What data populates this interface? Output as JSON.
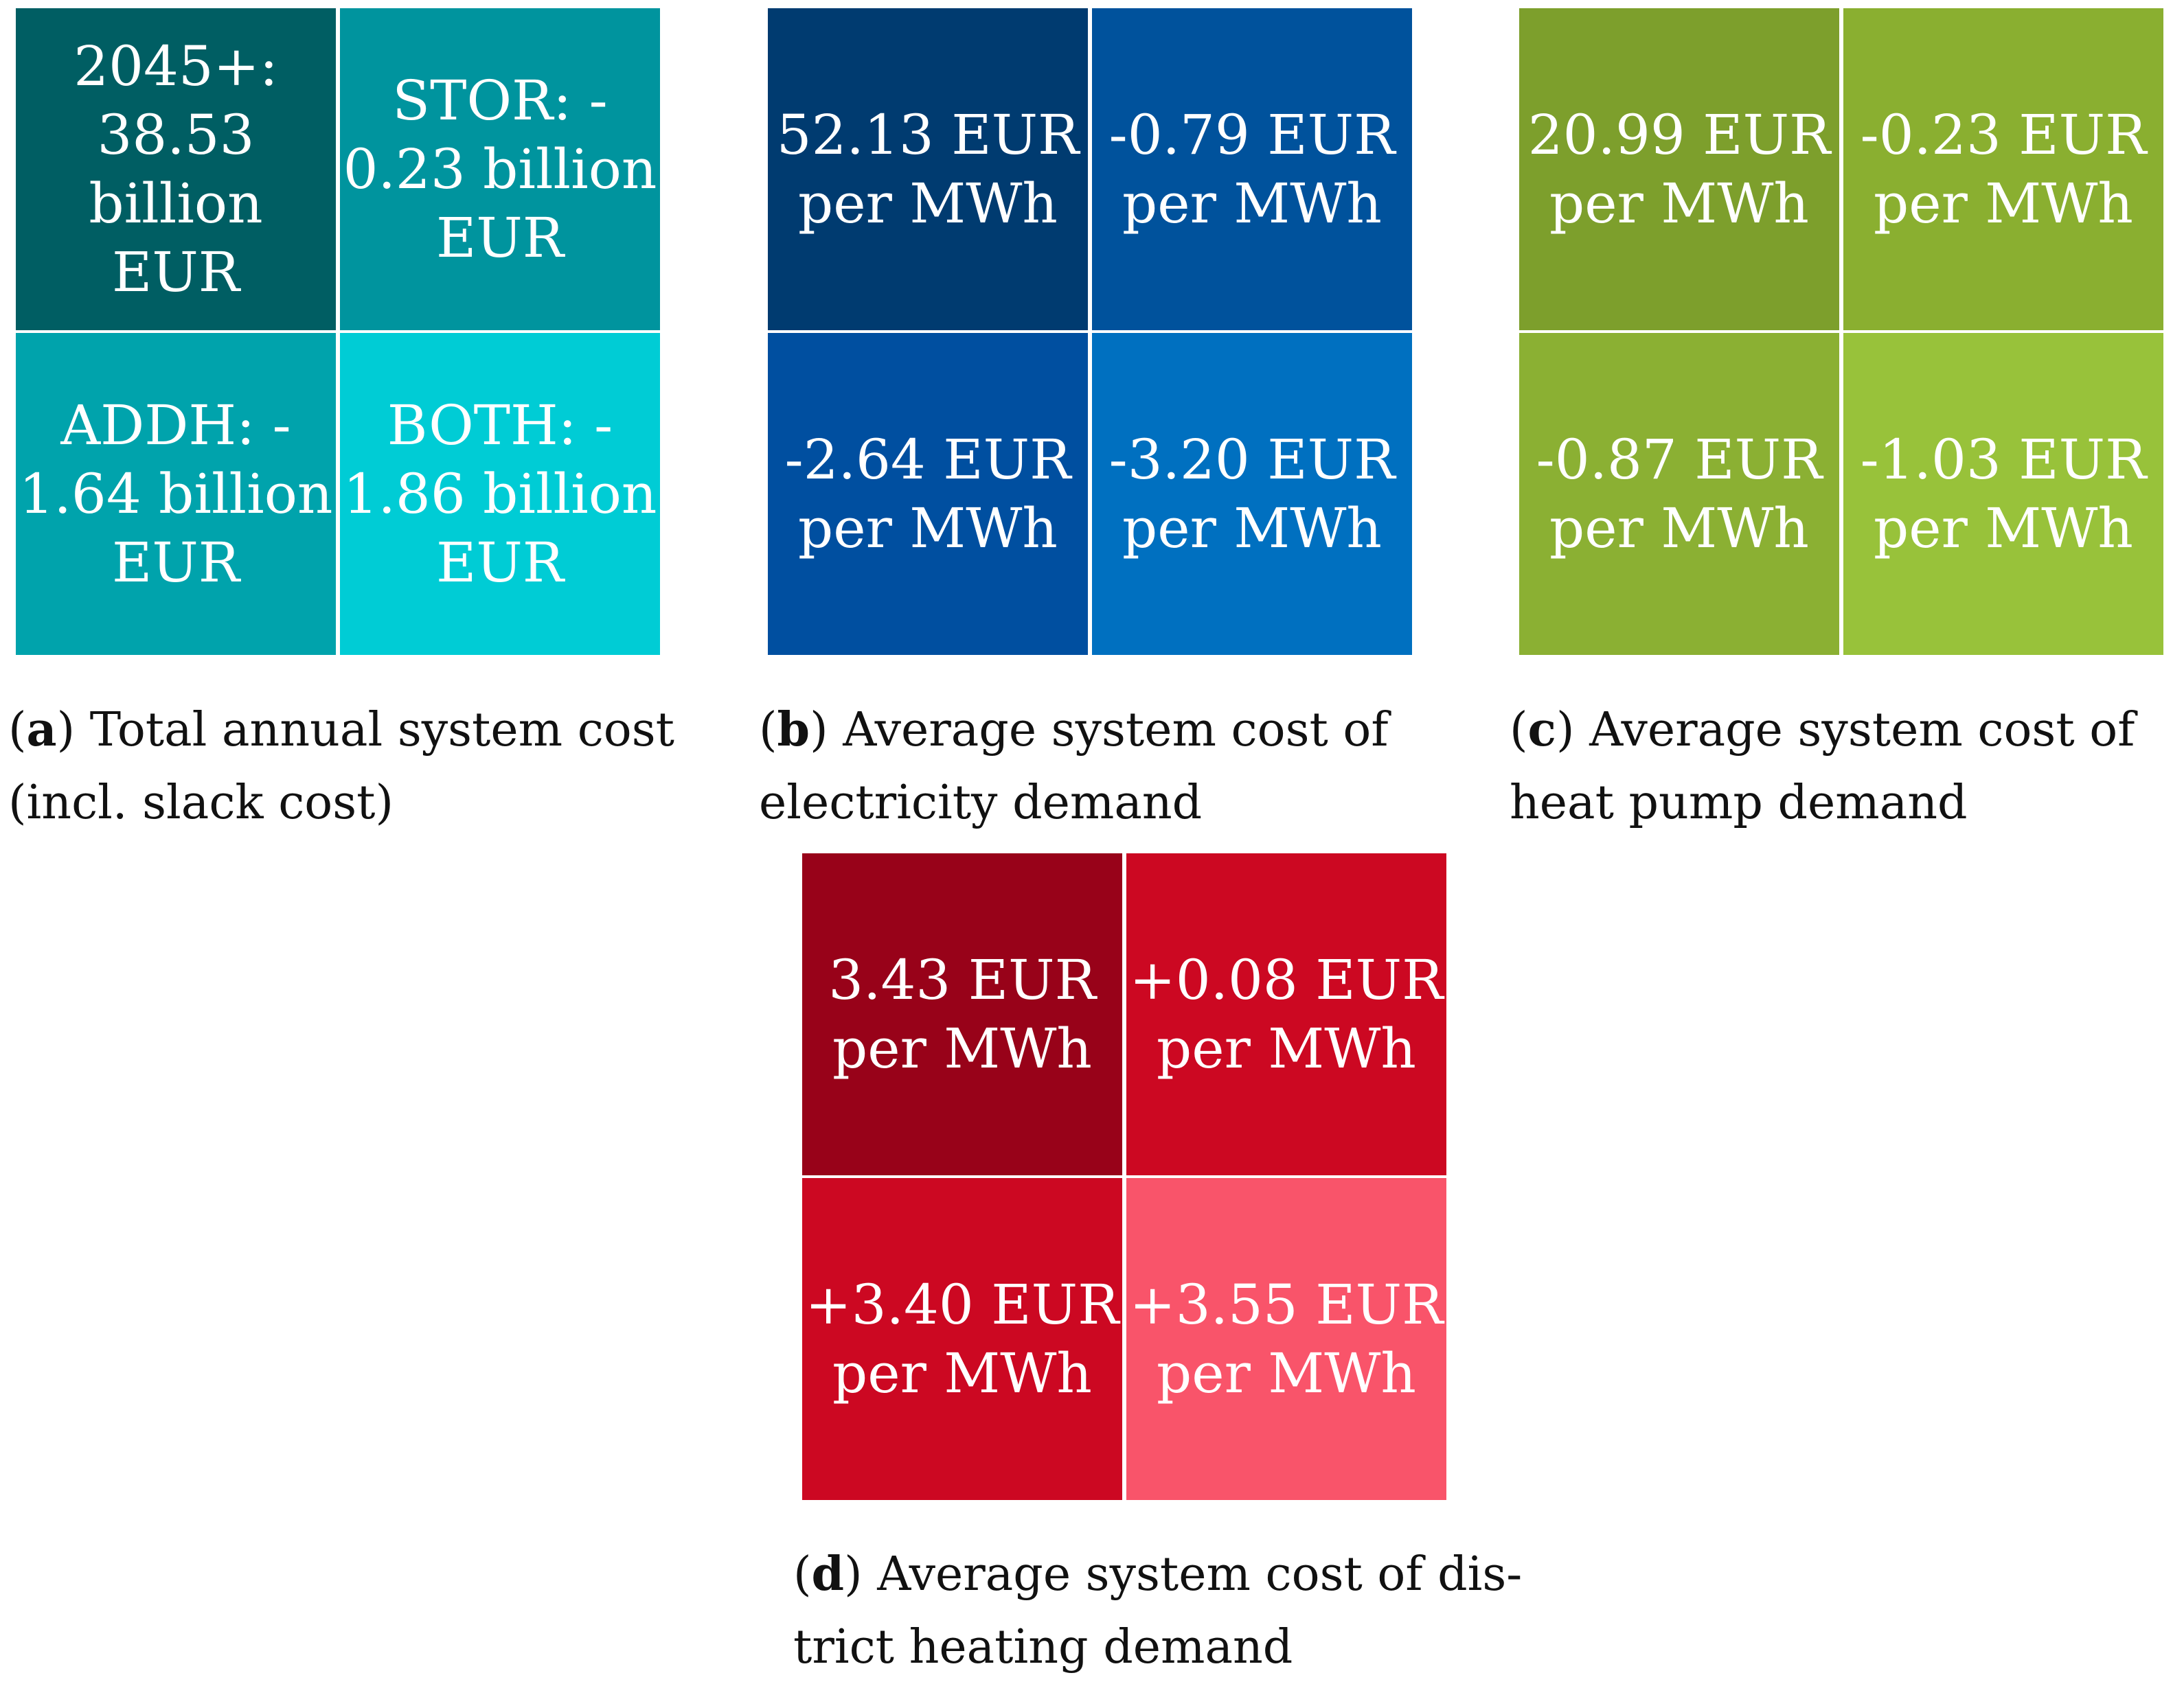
{
  "chart_data": [
    {
      "type": "table",
      "label": "a",
      "caption_lines": [
        "Total annual system cost",
        "(incl. slack cost)"
      ],
      "colors": [
        "#005e63",
        "#00949e",
        "#00a3ac",
        "#00ccd5"
      ],
      "cells": [
        {
          "lines": [
            "2045+:",
            "38.53",
            "billion",
            "EUR"
          ],
          "value": 38.53
        },
        {
          "lines": [
            "STOR: -",
            "0.23 billion",
            "EUR"
          ],
          "value": -0.23
        },
        {
          "lines": [
            "ADDH: -",
            "1.64 billion",
            "EUR"
          ],
          "value": -1.64
        },
        {
          "lines": [
            "BOTH: -",
            "1.86 billion",
            "EUR"
          ],
          "value": -1.86
        }
      ]
    },
    {
      "type": "table",
      "label": "b",
      "caption_lines": [
        "Average system cost of",
        "electricity demand"
      ],
      "colors": [
        "#003b70",
        "#00529c",
        "#004fa0",
        "#0070c0"
      ],
      "cells": [
        {
          "lines": [
            "52.13 EUR",
            "per MWh"
          ],
          "value": 52.13
        },
        {
          "lines": [
            "-0.79 EUR",
            "per MWh"
          ],
          "value": -0.79
        },
        {
          "lines": [
            "-2.64 EUR",
            "per MWh"
          ],
          "value": -2.64
        },
        {
          "lines": [
            "-3.20 EUR",
            "per MWh"
          ],
          "value": -3.2
        }
      ]
    },
    {
      "type": "table",
      "label": "c",
      "caption_lines": [
        "Average system cost of",
        "heat pump demand"
      ],
      "colors": [
        "#7d9f2c",
        "#8aaf30",
        "#8bb033",
        "#98c23a"
      ],
      "cells": [
        {
          "lines": [
            "20.99 EUR",
            "per MWh"
          ],
          "value": 20.99
        },
        {
          "lines": [
            "-0.23 EUR",
            "per MWh"
          ],
          "value": -0.23
        },
        {
          "lines": [
            "-0.87 EUR",
            "per MWh"
          ],
          "value": -0.87
        },
        {
          "lines": [
            "-1.03 EUR",
            "per MWh"
          ],
          "value": -1.03
        }
      ]
    },
    {
      "type": "table",
      "label": "d",
      "caption_lines": [
        "Average system cost of dis-",
        "trict heating demand"
      ],
      "colors": [
        "#980219",
        "#cc0822",
        "#cc0822",
        "#f9546a"
      ],
      "cells": [
        {
          "lines": [
            "3.43 EUR",
            "per MWh"
          ],
          "value": 3.43
        },
        {
          "lines": [
            "+0.08 EUR",
            "per MWh"
          ],
          "value": 0.08
        },
        {
          "lines": [
            "+3.40 EUR",
            "per MWh"
          ],
          "value": 3.4
        },
        {
          "lines": [
            "+3.55 EUR",
            "per MWh"
          ],
          "value": 3.55
        }
      ]
    }
  ]
}
